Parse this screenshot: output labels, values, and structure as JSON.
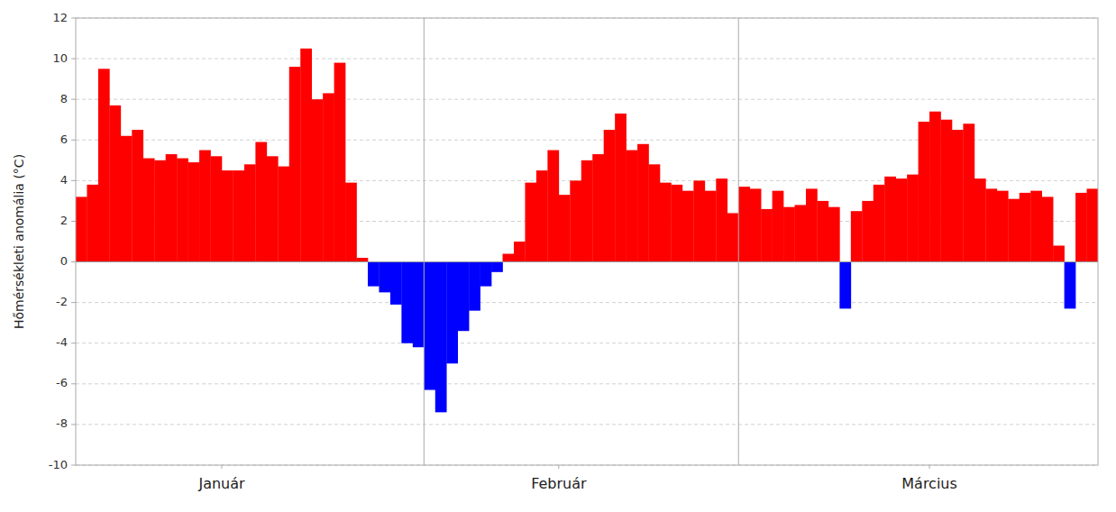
{
  "chart_data": {
    "type": "bar",
    "y_label": "Hőmérsékleti anomália (°C)",
    "x": [
      1,
      2,
      3,
      4,
      5,
      6,
      7,
      8,
      9,
      10,
      11,
      12,
      13,
      14,
      15,
      16,
      17,
      18,
      19,
      20,
      21,
      22,
      23,
      24,
      25,
      26,
      27,
      28,
      29,
      30,
      31,
      32,
      33,
      34,
      35,
      36,
      37,
      38,
      39,
      40,
      41,
      42,
      43,
      44,
      45,
      46,
      47,
      48,
      49,
      50,
      51,
      52,
      53,
      54,
      55,
      56,
      57,
      58,
      59,
      60,
      61,
      62,
      63,
      64,
      65,
      66,
      67,
      68,
      69,
      70,
      71,
      72,
      73,
      74,
      75,
      76,
      77,
      78,
      79,
      80,
      81,
      82,
      83,
      84,
      85,
      86,
      87,
      88,
      89,
      90,
      91
    ],
    "values": [
      3.2,
      3.8,
      9.5,
      7.7,
      6.2,
      6.5,
      5.1,
      5.0,
      5.3,
      5.1,
      4.9,
      5.5,
      5.2,
      4.5,
      4.5,
      4.8,
      5.9,
      5.2,
      4.7,
      9.6,
      10.5,
      8.0,
      8.3,
      9.8,
      3.9,
      0.2,
      -1.2,
      -1.5,
      -2.1,
      -4.0,
      -4.2,
      -6.3,
      -7.4,
      -5.0,
      -3.4,
      -2.4,
      -1.2,
      -0.5,
      0.4,
      1.0,
      3.9,
      4.5,
      5.5,
      3.3,
      4.0,
      5.0,
      5.3,
      6.5,
      7.3,
      5.5,
      5.8,
      4.8,
      3.9,
      3.8,
      3.5,
      4.0,
      3.5,
      4.1,
      2.4,
      3.7,
      3.6,
      2.6,
      3.5,
      2.7,
      2.8,
      3.6,
      3.0,
      2.7,
      -2.3,
      2.5,
      3.0,
      3.8,
      4.2,
      4.1,
      4.3,
      6.9,
      7.4,
      7.0,
      6.5,
      6.8,
      4.1,
      3.6,
      3.5,
      3.1,
      3.4,
      3.5,
      3.2,
      0.8,
      -2.3,
      3.4,
      3.6
    ],
    "colors": [
      "#ff0000",
      "#ff0000",
      "#ff0000",
      "#ff0000",
      "#ff0000",
      "#ff0000",
      "#ff0000",
      "#ff0000",
      "#ff0000",
      "#ff0000",
      "#ff0000",
      "#ff0000",
      "#ff0000",
      "#ff0000",
      "#ff0000",
      "#ff0000",
      "#ff0000",
      "#ff0000",
      "#ff0000",
      "#ff0000",
      "#ff0000",
      "#ff0000",
      "#ff0000",
      "#ff0000",
      "#ff0000",
      "#ff0000",
      "#0000ff",
      "#0000ff",
      "#0000ff",
      "#0000ff",
      "#0000ff",
      "#0000ff",
      "#0000ff",
      "#0000ff",
      "#0000ff",
      "#0000ff",
      "#0000ff",
      "#0000ff",
      "#ff0000",
      "#ff0000",
      "#ff0000",
      "#ff0000",
      "#ff0000",
      "#ff0000",
      "#ff0000",
      "#ff0000",
      "#ff0000",
      "#ff0000",
      "#ff0000",
      "#ff0000",
      "#ff0000",
      "#ff0000",
      "#ff0000",
      "#ff0000",
      "#ff0000",
      "#ff0000",
      "#ff0000",
      "#ff0000",
      "#ff0000",
      "#ff0000",
      "#ff0000",
      "#ff0000",
      "#ff0000",
      "#ff0000",
      "#ff0000",
      "#ff0000",
      "#ff0000",
      "#ff0000",
      "#0000ff",
      "#ff0000",
      "#ff0000",
      "#ff0000",
      "#ff0000",
      "#ff0000",
      "#ff0000",
      "#ff0000",
      "#ff0000",
      "#ff0000",
      "#ff0000",
      "#ff0000",
      "#ff0000",
      "#ff0000",
      "#ff0000",
      "#ff0000",
      "#ff0000",
      "#ff0000",
      "#ff0000",
      "#ff0000",
      "#0000ff",
      "#ff0000",
      "#ff0000"
    ],
    "xlim": [
      0.5,
      91.5
    ],
    "xticks": [
      {
        "value": 13.5,
        "label": "Január"
      },
      {
        "value": 43.5,
        "label": "Február"
      },
      {
        "value": 76.5,
        "label": "Március"
      }
    ],
    "separators": [
      31.5,
      59.5
    ],
    "ylim": [
      -10,
      12
    ],
    "yticks": [
      -10,
      -8,
      -6,
      -4,
      -2,
      0,
      2,
      4,
      6,
      8,
      10,
      12
    ],
    "grid": true
  }
}
